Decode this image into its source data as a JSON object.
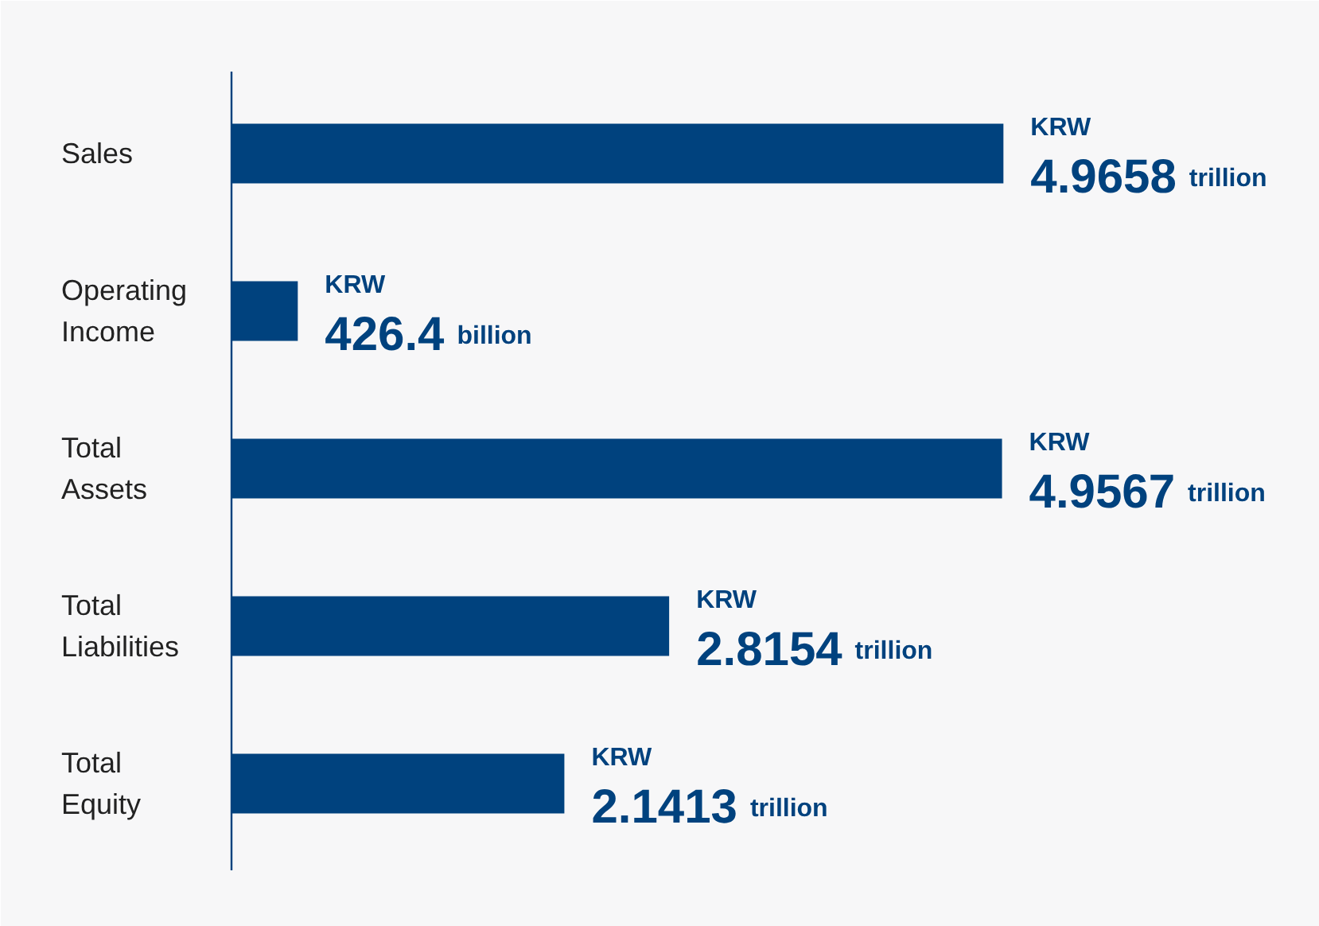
{
  "chart_data": {
    "type": "bar",
    "orientation": "horizontal",
    "categories": [
      "Sales",
      "Operating Income",
      "Total Assets",
      "Total Liabilities",
      "Total Equity"
    ],
    "values": [
      4.9658,
      0.4264,
      4.9567,
      2.8154,
      2.1413
    ],
    "color": "#00427e",
    "value_labels": [
      "KRW 4.9658 trillion",
      "KRW 426.4 billion",
      "KRW 4.9567 trillion",
      "KRW 2.8154 trillion",
      "KRW 2.1413 trillion"
    ]
  }
}
